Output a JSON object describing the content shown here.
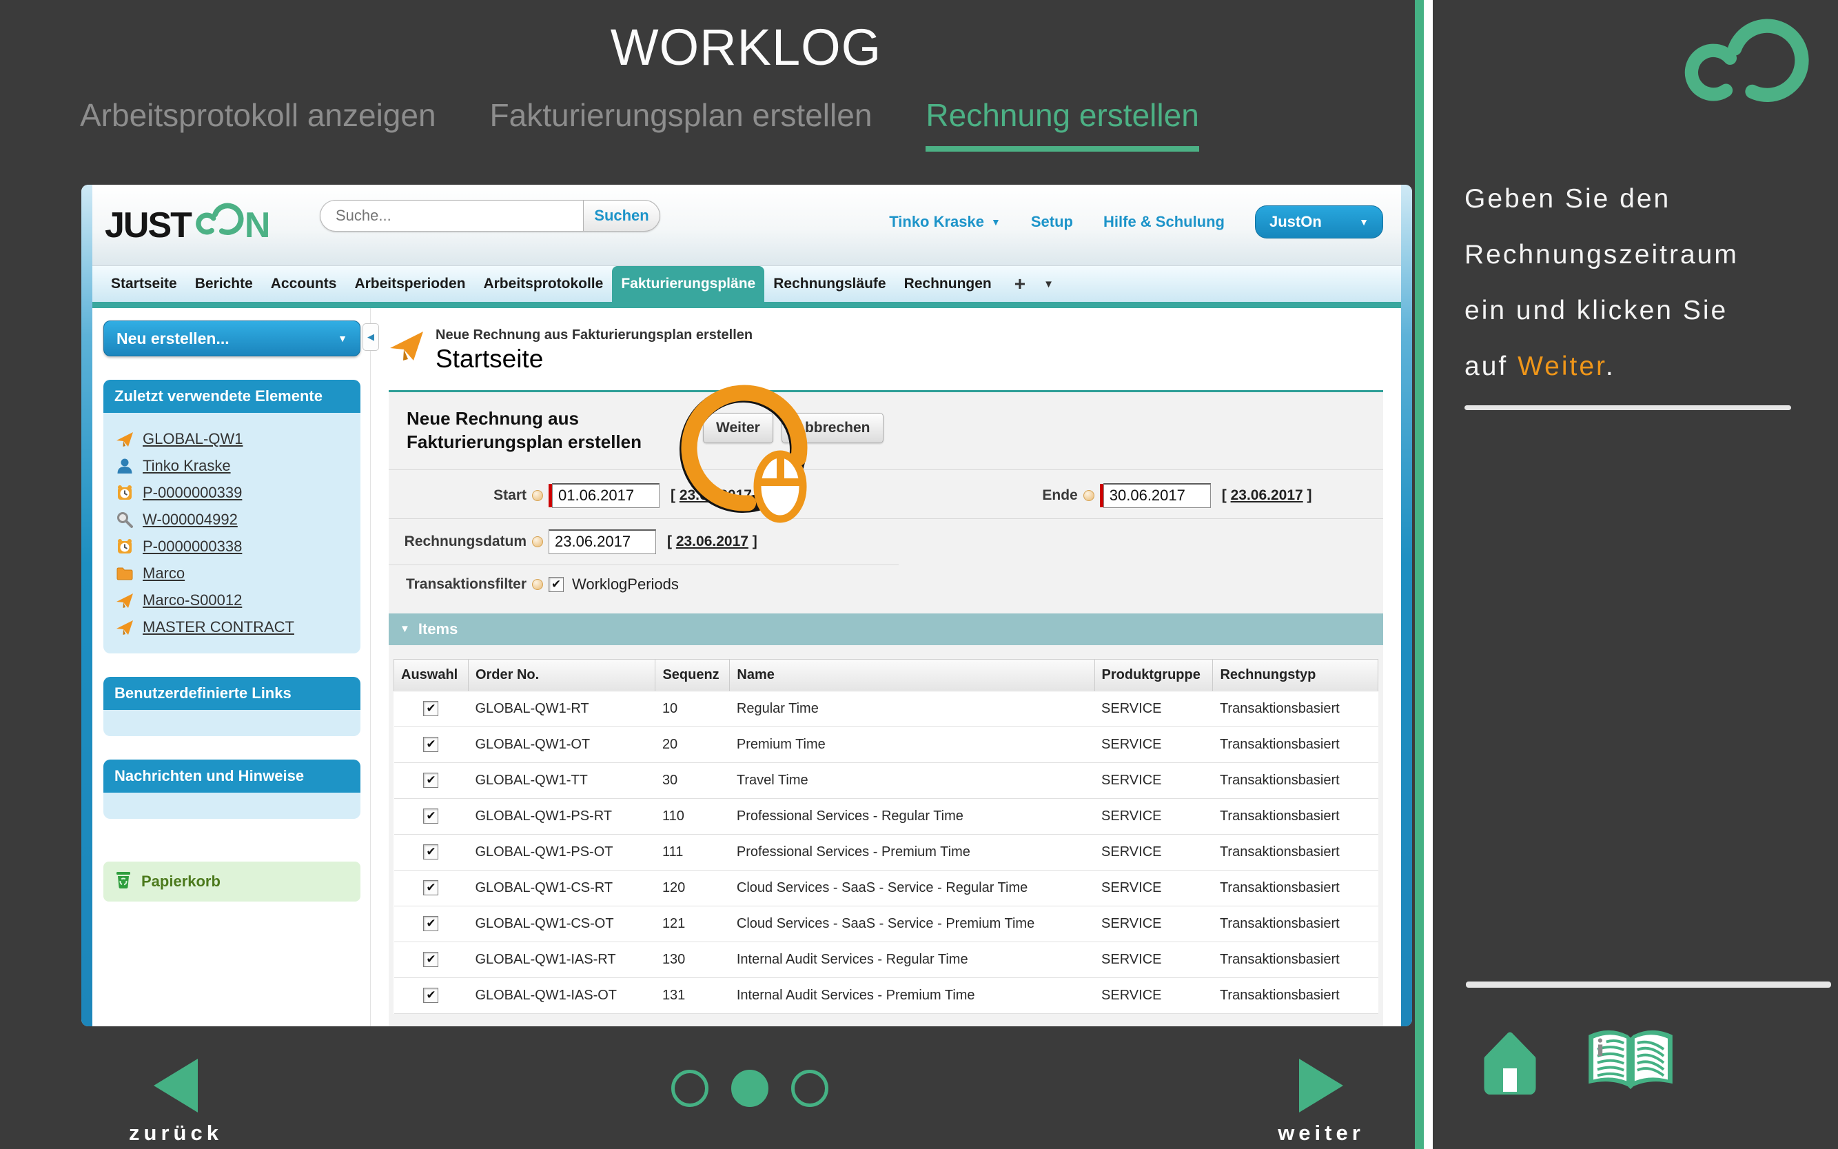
{
  "slide": {
    "title": "WORKLOG",
    "steps": [
      {
        "label": "Arbeitsprotokoll anzeigen",
        "active": false
      },
      {
        "label": "Fakturierungsplan erstellen",
        "active": false
      },
      {
        "label": "Rechnung erstellen",
        "active": true
      }
    ],
    "nav": {
      "back_label": "zurück",
      "next_label": "weiter",
      "dots_total": 3,
      "active_dot_index": 1
    }
  },
  "right_panel": {
    "lines": [
      "Geben Sie den",
      "Rechnungszeitraum",
      "ein und klicken Sie"
    ],
    "last_line": {
      "prefix": "auf ",
      "highlight": "Weiter",
      "suffix": "."
    }
  },
  "glyphs": {
    "caret_down": "▼",
    "caret_left": "◀",
    "plus": "+",
    "check": "✔",
    "section_caret": "▼"
  },
  "colors": {
    "accent_green": "#45b184",
    "accent_orange": "#ef9619",
    "header_blue": "#1d94c9",
    "tab_teal": "#39a79e",
    "sidebar_blue": "#1e94c6",
    "required_red": "#cc0000"
  },
  "app": {
    "logo": {
      "just": "JUST",
      "n": "N"
    },
    "search": {
      "placeholder": "Suche...",
      "button_label": "Suchen"
    },
    "header_links": {
      "user": "Tinko Kraske",
      "setup": "Setup",
      "help": "Hilfe & Schulung",
      "app_menu": "JustOn"
    },
    "tabs": [
      {
        "label": "Startseite",
        "active": false
      },
      {
        "label": "Berichte",
        "active": false
      },
      {
        "label": "Accounts",
        "active": false
      },
      {
        "label": "Arbeitsperioden",
        "active": false
      },
      {
        "label": "Arbeitsprotokolle",
        "active": false
      },
      {
        "label": "Fakturierungspläne",
        "active": true
      },
      {
        "label": "Rechnungsläufe",
        "active": false
      },
      {
        "label": "Rechnungen",
        "active": false
      }
    ],
    "sidebar": {
      "new_button": "Neu erstellen...",
      "recent": {
        "title": "Zuletzt verwendete Elemente",
        "items": [
          {
            "icon": "contract-icon",
            "label": "GLOBAL-QW1"
          },
          {
            "icon": "user-icon",
            "label": "Tinko Kraske"
          },
          {
            "icon": "period-icon",
            "label": "P-0000000339"
          },
          {
            "icon": "search-icon",
            "label": "W-000004992"
          },
          {
            "icon": "period-icon",
            "label": "P-0000000338"
          },
          {
            "icon": "folder-icon",
            "label": "Marco"
          },
          {
            "icon": "contract-icon",
            "label": "Marco-S00012"
          },
          {
            "icon": "contract-icon",
            "label": "MASTER CONTRACT"
          }
        ]
      },
      "custom_links_title": "Benutzerdefinierte Links",
      "messages_title": "Nachrichten und Hinweise",
      "recycle_bin_label": "Papierkorb"
    },
    "main": {
      "breadcrumb": "Neue Rechnung aus Fakturierungsplan erstellen",
      "page_title": "Startseite",
      "panel_title_line1": "Neue Rechnung aus",
      "panel_title_line2": "Fakturierungsplan erstellen",
      "weiter_button": "Weiter",
      "abbrechen_button": "Abbrechen",
      "fields": {
        "start": {
          "label": "Start",
          "value": "01.06.2017",
          "hint_prefix": "[ ",
          "hint_date": "23.06.2017",
          "hint_suffix": " ]"
        },
        "ende": {
          "label": "Ende",
          "value": "30.06.2017",
          "hint_prefix": "[ ",
          "hint_date": "23.06.2017",
          "hint_suffix": " ]"
        },
        "rechnungsdatum": {
          "label": "Rechnungsdatum",
          "value": "23.06.2017",
          "hint_prefix": "[ ",
          "hint_date": "23.06.2017",
          "hint_suffix": " ]"
        },
        "transaktionsfilter": {
          "label": "Transaktionsfilter",
          "checkbox_label": "WorklogPeriods",
          "checked": true
        }
      },
      "items": {
        "section_title": "Items",
        "columns": [
          "Auswahl",
          "Order No.",
          "Sequenz",
          "Name",
          "Produktgruppe",
          "Rechnungstyp"
        ],
        "rows": [
          {
            "checked": true,
            "order_no": "GLOBAL-QW1-RT",
            "sequenz": "10",
            "name": "Regular Time",
            "produktgruppe": "SERVICE",
            "rechnungstyp": "Transaktionsbasiert"
          },
          {
            "checked": true,
            "order_no": "GLOBAL-QW1-OT",
            "sequenz": "20",
            "name": "Premium Time",
            "produktgruppe": "SERVICE",
            "rechnungstyp": "Transaktionsbasiert"
          },
          {
            "checked": true,
            "order_no": "GLOBAL-QW1-TT",
            "sequenz": "30",
            "name": "Travel Time",
            "produktgruppe": "SERVICE",
            "rechnungstyp": "Transaktionsbasiert"
          },
          {
            "checked": true,
            "order_no": "GLOBAL-QW1-PS-RT",
            "sequenz": "110",
            "name": "Professional Services - Regular Time",
            "produktgruppe": "SERVICE",
            "rechnungstyp": "Transaktionsbasiert"
          },
          {
            "checked": true,
            "order_no": "GLOBAL-QW1-PS-OT",
            "sequenz": "111",
            "name": "Professional Services - Premium Time",
            "produktgruppe": "SERVICE",
            "rechnungstyp": "Transaktionsbasiert"
          },
          {
            "checked": true,
            "order_no": "GLOBAL-QW1-CS-RT",
            "sequenz": "120",
            "name": "Cloud Services - SaaS - Service - Regular Time",
            "produktgruppe": "SERVICE",
            "rechnungstyp": "Transaktionsbasiert"
          },
          {
            "checked": true,
            "order_no": "GLOBAL-QW1-CS-OT",
            "sequenz": "121",
            "name": "Cloud Services - SaaS - Service - Premium Time",
            "produktgruppe": "SERVICE",
            "rechnungstyp": "Transaktionsbasiert"
          },
          {
            "checked": true,
            "order_no": "GLOBAL-QW1-IAS-RT",
            "sequenz": "130",
            "name": "Internal Audit Services - Regular Time",
            "produktgruppe": "SERVICE",
            "rechnungstyp": "Transaktionsbasiert"
          },
          {
            "checked": true,
            "order_no": "GLOBAL-QW1-IAS-OT",
            "sequenz": "131",
            "name": "Internal Audit Services - Premium Time",
            "produktgruppe": "SERVICE",
            "rechnungstyp": "Transaktionsbasiert"
          }
        ]
      }
    }
  }
}
